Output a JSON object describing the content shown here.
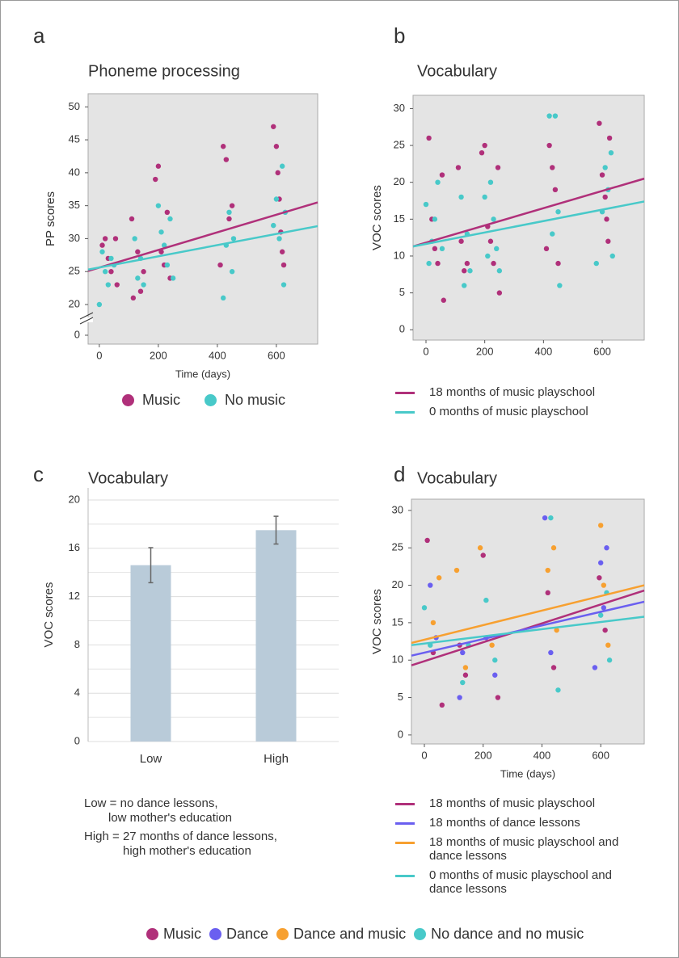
{
  "chart_data": [
    {
      "type": "scatter",
      "panel_label": "a",
      "title": "Phoneme processing",
      "xlabel": "Time (days)",
      "ylabel": "PP scores",
      "xlim": [
        -38,
        740
      ],
      "ylim": [
        0,
        52
      ],
      "ybreak": [
        0,
        20
      ],
      "xticks": [
        0,
        200,
        400,
        600
      ],
      "yticks": [
        0,
        20,
        25,
        30,
        35,
        40,
        45,
        50
      ],
      "series": [
        {
          "name": "Music",
          "color": "#b0307a",
          "x": [
            10,
            20,
            30,
            40,
            55,
            60,
            110,
            115,
            130,
            140,
            150,
            190,
            200,
            210,
            220,
            230,
            240,
            410,
            420,
            430,
            440,
            450,
            590,
            600,
            605,
            610,
            615,
            620,
            625
          ],
          "values": [
            29,
            30,
            27,
            25,
            30,
            23,
            33,
            21,
            28,
            22,
            25,
            39,
            41,
            28,
            26,
            34,
            24,
            26,
            44,
            42,
            33,
            35,
            47,
            44,
            40,
            36,
            31,
            28,
            26
          ]
        },
        {
          "name": "No music",
          "color": "#48c9c9",
          "x": [
            0,
            10,
            20,
            30,
            40,
            50,
            120,
            130,
            140,
            150,
            200,
            210,
            220,
            230,
            240,
            250,
            420,
            430,
            440,
            450,
            455,
            590,
            600,
            610,
            620,
            625,
            630
          ],
          "values": [
            20,
            28,
            25,
            23,
            27,
            26,
            30,
            24,
            27,
            23,
            35,
            31,
            29,
            26,
            33,
            24,
            21,
            29,
            34,
            25,
            30,
            32,
            36,
            30,
            41,
            23,
            34
          ]
        }
      ],
      "lines": [
        {
          "color": "#b0307a",
          "x": [
            -38,
            740
          ],
          "values": [
            25.1,
            35.5
          ]
        },
        {
          "color": "#48c9c9",
          "x": [
            -38,
            740
          ],
          "values": [
            25.3,
            31.9
          ]
        }
      ]
    },
    {
      "type": "scatter",
      "panel_label": "b",
      "title": "Vocabulary",
      "ylabel": "VOC scores",
      "xlim": [
        -44,
        743
      ],
      "ylim": [
        -1.4,
        31.8
      ],
      "xticks": [
        0,
        200,
        400,
        600
      ],
      "yticks": [
        0,
        5,
        10,
        15,
        20,
        25,
        30
      ],
      "series": [
        {
          "color": "#b0307a",
          "x": [
            10,
            20,
            30,
            40,
            55,
            60,
            110,
            120,
            130,
            140,
            190,
            200,
            210,
            220,
            230,
            245,
            250,
            410,
            420,
            430,
            440,
            450,
            590,
            600,
            610,
            615,
            620,
            625
          ],
          "values": [
            26,
            15,
            11,
            9,
            21,
            4,
            22,
            12,
            8,
            9,
            24,
            25,
            14,
            12,
            9,
            22,
            5,
            11,
            25,
            22,
            19,
            9,
            28,
            21,
            18,
            15,
            12,
            26
          ]
        },
        {
          "color": "#48c9c9",
          "x": [
            0,
            10,
            20,
            30,
            40,
            55,
            120,
            130,
            140,
            150,
            200,
            210,
            220,
            230,
            240,
            250,
            420,
            430,
            440,
            450,
            455,
            580,
            600,
            610,
            620,
            630,
            635
          ],
          "values": [
            17,
            9,
            12,
            15,
            20,
            11,
            18,
            6,
            13,
            8,
            18,
            10,
            20,
            15,
            11,
            8,
            29,
            13,
            29,
            16,
            6,
            9,
            16,
            22,
            19,
            24,
            10
          ]
        }
      ],
      "lines": [
        {
          "name": "18 months of music playschool",
          "color": "#b0307a",
          "x": [
            -44,
            743
          ],
          "values": [
            11.3,
            20.5
          ]
        },
        {
          "name": "0 months of music playschool",
          "color": "#48c9c9",
          "x": [
            -44,
            743
          ],
          "values": [
            11.3,
            17.4
          ]
        }
      ]
    },
    {
      "type": "bar",
      "panel_label": "c",
      "title": "Vocabulary",
      "ylabel": "VOC scores",
      "categories": [
        "Low",
        "High"
      ],
      "values": [
        14.6,
        17.5
      ],
      "errors": [
        1.45,
        1.15
      ],
      "color": "#b9cbd9",
      "ylim": [
        0,
        21
      ],
      "yticks": [
        0,
        4,
        8,
        12,
        16,
        20
      ],
      "minor_yticks": [
        2,
        6,
        10,
        14,
        18
      ],
      "grid": true,
      "notes": [
        [
          "Low = no dance lessons,",
          "low mother's education"
        ],
        [
          "High = 27 months of dance lessons,",
          "high mother's education"
        ]
      ]
    },
    {
      "type": "scatter",
      "panel_label": "d",
      "title": "Vocabulary",
      "xlabel": "Time (days)",
      "ylabel": "VOC scores",
      "xlim": [
        -44,
        748
      ],
      "ylim": [
        -1.2,
        31.5
      ],
      "xticks": [
        0,
        200,
        400,
        600
      ],
      "yticks": [
        0,
        5,
        10,
        15,
        20,
        25,
        30
      ],
      "series": [
        {
          "name": "Music",
          "color": "#b0307a",
          "x": [
            10,
            30,
            60,
            120,
            140,
            200,
            250,
            420,
            440,
            595,
            615
          ],
          "values": [
            26,
            11,
            4,
            12,
            8,
            24,
            5,
            19,
            9,
            21,
            14
          ]
        },
        {
          "name": "Dance",
          "color": "#6a5ff0",
          "x": [
            20,
            40,
            120,
            130,
            210,
            240,
            410,
            430,
            580,
            600,
            610,
            620
          ],
          "values": [
            20,
            13,
            5,
            11,
            13,
            8,
            29,
            11,
            9,
            23,
            17,
            25
          ]
        },
        {
          "name": "Dance and music",
          "color": "#f7a030",
          "x": [
            30,
            50,
            110,
            140,
            190,
            230,
            420,
            440,
            450,
            600,
            610,
            625
          ],
          "values": [
            15,
            21,
            22,
            9,
            25,
            12,
            22,
            25,
            14,
            28,
            20,
            12
          ]
        },
        {
          "name": "No dance and no music",
          "color": "#48c9c9",
          "x": [
            0,
            20,
            130,
            150,
            210,
            240,
            430,
            455,
            600,
            620,
            630
          ],
          "values": [
            17,
            12,
            7,
            12,
            18,
            10,
            29,
            6,
            16,
            19,
            10
          ]
        }
      ],
      "lines": [
        {
          "name": "18 months of music playschool",
          "color": "#b0307a",
          "x": [
            -44,
            748
          ],
          "values": [
            9.3,
            19.3
          ]
        },
        {
          "name": "18 months of dance lessons",
          "color": "#6a5ff0",
          "x": [
            -44,
            748
          ],
          "values": [
            10.6,
            17.8
          ]
        },
        {
          "name": "18 months of music playschool and dance lessons",
          "color": "#f7a030",
          "x": [
            -44,
            748
          ],
          "values": [
            12.3,
            20
          ]
        },
        {
          "name": "0 months of music playschool and dance lessons",
          "color": "#48c9c9",
          "x": [
            -44,
            748
          ],
          "values": [
            12,
            15.8
          ]
        }
      ]
    }
  ]
}
